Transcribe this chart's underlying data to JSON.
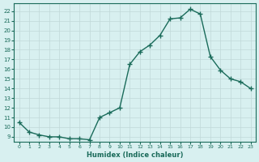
{
  "x": [
    0,
    1,
    2,
    3,
    4,
    5,
    6,
    7,
    8,
    9,
    10,
    11,
    12,
    13,
    14,
    15,
    16,
    17,
    18,
    19,
    20,
    21,
    22,
    23
  ],
  "y": [
    10.5,
    9.5,
    9.2,
    9.0,
    9.0,
    8.8,
    8.8,
    8.7,
    11.0,
    11.5,
    12.0,
    16.5,
    17.8,
    18.5,
    19.5,
    21.2,
    21.3,
    22.2,
    21.7,
    17.3,
    15.9,
    15.0,
    14.7,
    14.0
  ],
  "line_color": "#1a6b5a",
  "marker": "+",
  "bg_color": "#d8f0f0",
  "grid_color": "#c0d8d8",
  "xlabel": "Humidex (Indice chaleur)",
  "ylim": [
    8.5,
    22.8
  ],
  "xlim": [
    -0.5,
    23.5
  ],
  "yticks": [
    9,
    10,
    11,
    12,
    13,
    14,
    15,
    16,
    17,
    18,
    19,
    20,
    21,
    22
  ],
  "xticks": [
    0,
    1,
    2,
    3,
    4,
    5,
    6,
    7,
    8,
    9,
    10,
    11,
    12,
    13,
    14,
    15,
    16,
    17,
    18,
    19,
    20,
    21,
    22,
    23
  ],
  "axis_color": "#1a6b5a",
  "tick_color": "#1a6b5a"
}
